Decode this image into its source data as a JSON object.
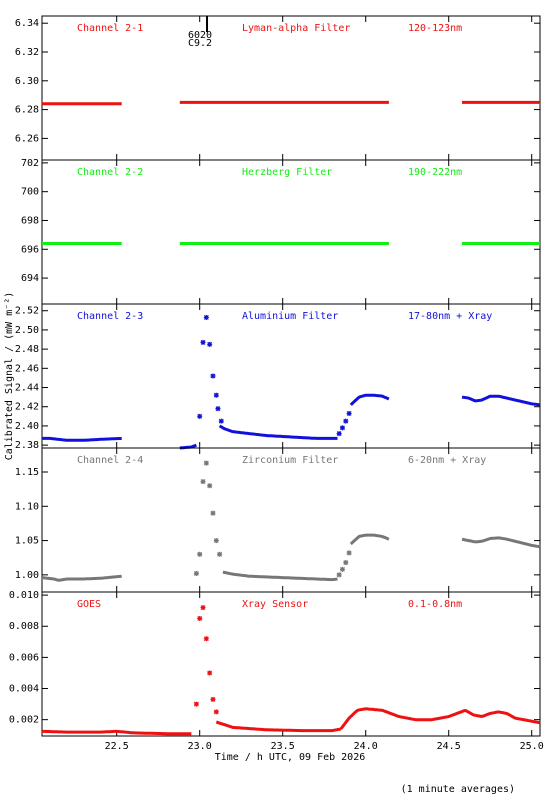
{
  "x_axis": {
    "label": "Time / h UTC, 09 Feb 2026",
    "range": [
      22.05,
      25.05
    ],
    "ticks": [
      22.5,
      23.0,
      23.5,
      24.0,
      24.5,
      25.0
    ],
    "tick_labels": [
      "22.5",
      "23.0",
      "23.5",
      "24.0",
      "24.5",
      "25.0"
    ]
  },
  "y_axis_label": "Calibrated Signal / (mW m⁻²)",
  "footnote": "(1 minute averages)",
  "marker_annotation": {
    "x": 23.02,
    "line1": "6020",
    "line2": "C9.2"
  },
  "chart_data": [
    {
      "type": "scatter",
      "name": "Channel 2-1",
      "filter": "Lyman-alpha Filter",
      "band": "120-123nm",
      "color": "#ee1111",
      "ylim": [
        6.245,
        6.345
      ],
      "yticks": [
        6.26,
        6.28,
        6.3,
        6.32,
        6.34
      ],
      "ytick_labels": [
        "6.26",
        "6.28",
        "6.30",
        "6.32",
        "6.34"
      ],
      "segments": [
        {
          "x": [
            22.05,
            22.53
          ],
          "y": [
            6.284,
            6.284
          ]
        },
        {
          "x": [
            22.88,
            24.14
          ],
          "y": [
            6.285,
            6.285
          ]
        },
        {
          "x": [
            24.58,
            25.05
          ],
          "y": [
            6.285,
            6.285
          ]
        }
      ],
      "markers": []
    },
    {
      "type": "scatter",
      "name": "Channel 2-2",
      "filter": "Herzberg Filter",
      "band": "190-222nm",
      "color": "#11ee11",
      "ylim": [
        692.2,
        702.2
      ],
      "yticks": [
        694,
        696,
        698,
        700,
        702
      ],
      "ytick_labels": [
        "694",
        "696",
        "698",
        "700",
        "702"
      ],
      "segments": [
        {
          "x": [
            22.05,
            22.53
          ],
          "y": [
            696.4,
            696.4
          ]
        },
        {
          "x": [
            22.88,
            24.14
          ],
          "y": [
            696.4,
            696.4
          ]
        },
        {
          "x": [
            24.58,
            25.05
          ],
          "y": [
            696.4,
            696.4
          ]
        }
      ],
      "markers": []
    },
    {
      "type": "scatter",
      "name": "Channel 2-3",
      "filter": "Aluminium Filter",
      "band": "17-80nm + Xray",
      "color": "#1111dd",
      "ylim": [
        2.377,
        2.527
      ],
      "yticks": [
        2.38,
        2.4,
        2.42,
        2.44,
        2.46,
        2.48,
        2.5,
        2.52
      ],
      "ytick_labels": [
        "2.38",
        "2.40",
        "2.42",
        "2.44",
        "2.46",
        "2.48",
        "2.50",
        "2.52"
      ],
      "segments": [
        {
          "x": [
            22.05,
            22.1,
            22.15,
            22.2,
            22.3,
            22.4,
            22.53
          ],
          "y": [
            2.387,
            2.387,
            2.386,
            2.385,
            2.385,
            2.386,
            2.387
          ]
        },
        {
          "x": [
            22.88,
            22.95,
            22.98
          ],
          "y": [
            2.377,
            2.378,
            2.38
          ]
        },
        {
          "x": [
            23.12,
            23.15,
            23.2,
            23.3,
            23.4,
            23.5,
            23.6,
            23.7,
            23.8,
            23.83
          ],
          "y": [
            2.4,
            2.397,
            2.394,
            2.392,
            2.39,
            2.389,
            2.388,
            2.387,
            2.387,
            2.387
          ]
        },
        {
          "x": [
            23.91,
            23.96,
            24.0,
            24.05,
            24.1,
            24.14
          ],
          "y": [
            2.422,
            2.43,
            2.432,
            2.432,
            2.431,
            2.428
          ]
        },
        {
          "x": [
            24.58,
            24.62,
            24.66,
            24.7,
            24.75,
            24.8,
            24.85,
            24.9,
            24.95,
            25.0,
            25.05
          ],
          "y": [
            2.43,
            2.429,
            2.426,
            2.427,
            2.431,
            2.431,
            2.429,
            2.427,
            2.425,
            2.423,
            2.422
          ]
        }
      ],
      "markers": [
        {
          "x": [
            23.0,
            23.02,
            23.04,
            23.06,
            23.08,
            23.1
          ],
          "y": [
            2.41,
            2.487,
            2.513,
            2.485,
            2.452,
            2.432
          ]
        },
        {
          "x": [
            23.11,
            23.13
          ],
          "y": [
            2.418,
            2.405
          ]
        },
        {
          "x": [
            23.84,
            23.86,
            23.88,
            23.9
          ],
          "y": [
            2.392,
            2.398,
            2.405,
            2.413
          ]
        }
      ]
    },
    {
      "type": "scatter",
      "name": "Channel 2-4",
      "filter": "Zirconium Filter",
      "band": "6-20nm + Xray",
      "color": "#777777",
      "ylim": [
        0.975,
        1.185
      ],
      "yticks": [
        1.0,
        1.05,
        1.1,
        1.15
      ],
      "ytick_labels": [
        "1.00",
        "1.05",
        "1.10",
        "1.15"
      ],
      "segments": [
        {
          "x": [
            22.05,
            22.12,
            22.15,
            22.2,
            22.3,
            22.4,
            22.53
          ],
          "y": [
            0.996,
            0.994,
            0.992,
            0.994,
            0.994,
            0.995,
            0.998
          ]
        },
        {
          "x": [
            23.14,
            23.2,
            23.3,
            23.4,
            23.5,
            23.6,
            23.7,
            23.8,
            23.83
          ],
          "y": [
            1.004,
            1.001,
            0.998,
            0.997,
            0.996,
            0.995,
            0.994,
            0.993,
            0.994
          ]
        },
        {
          "x": [
            23.91,
            23.96,
            24.0,
            24.05,
            24.1,
            24.14
          ],
          "y": [
            1.045,
            1.056,
            1.058,
            1.058,
            1.056,
            1.052
          ]
        },
        {
          "x": [
            24.58,
            24.62,
            24.66,
            24.7,
            24.75,
            24.8,
            24.85,
            24.9,
            24.95,
            25.0,
            25.05
          ],
          "y": [
            1.052,
            1.05,
            1.048,
            1.049,
            1.053,
            1.054,
            1.052,
            1.049,
            1.046,
            1.043,
            1.041
          ]
        }
      ],
      "markers": [
        {
          "x": [
            22.98,
            23.0,
            23.02,
            23.04,
            23.06,
            23.08,
            23.1,
            23.12
          ],
          "y": [
            1.002,
            1.03,
            1.136,
            1.163,
            1.13,
            1.09,
            1.05,
            1.03
          ]
        },
        {
          "x": [
            23.84,
            23.86,
            23.88,
            23.9
          ],
          "y": [
            1.0,
            1.008,
            1.018,
            1.032
          ]
        }
      ]
    },
    {
      "type": "scatter",
      "name": "GOES",
      "filter": "Xray Sensor",
      "band": "0.1-0.8nm",
      "color": "#ee1111",
      "ylim": [
        0.00095,
        0.0102
      ],
      "yticks": [
        0.002,
        0.004,
        0.006,
        0.008,
        0.01
      ],
      "ytick_labels": [
        "0.002",
        "0.004",
        "0.006",
        "0.008",
        "0.010"
      ],
      "segments": [
        {
          "x": [
            22.05,
            22.2,
            22.4,
            22.5,
            22.6,
            22.8,
            22.95
          ],
          "y": [
            0.00125,
            0.0012,
            0.0012,
            0.00125,
            0.00115,
            0.0011,
            0.0011
          ]
        },
        {
          "x": [
            23.1,
            23.2,
            23.4,
            23.6,
            23.8,
            23.85
          ],
          "y": [
            0.00185,
            0.0015,
            0.00135,
            0.0013,
            0.0013,
            0.0014
          ]
        },
        {
          "x": [
            23.85,
            23.9,
            23.95,
            24.0,
            24.1,
            24.2,
            24.3,
            24.4,
            24.5,
            24.6,
            24.65,
            24.7,
            24.75,
            24.8,
            24.85,
            24.9,
            25.0,
            25.05
          ],
          "y": [
            0.0014,
            0.0021,
            0.0026,
            0.0027,
            0.0026,
            0.0022,
            0.002,
            0.002,
            0.0022,
            0.0026,
            0.0023,
            0.0022,
            0.0024,
            0.0025,
            0.0024,
            0.0021,
            0.0019,
            0.0018
          ]
        }
      ],
      "markers": [
        {
          "x": [
            22.98,
            23.0,
            23.02,
            23.04,
            23.06,
            23.08,
            23.1
          ],
          "y": [
            0.003,
            0.0085,
            0.0092,
            0.0072,
            0.005,
            0.0033,
            0.0025
          ]
        }
      ]
    }
  ]
}
